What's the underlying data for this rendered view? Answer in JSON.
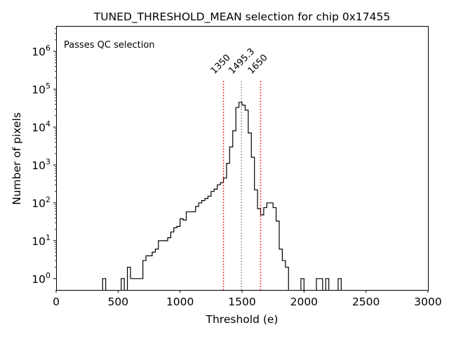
{
  "chart_data": {
    "type": "histogram",
    "title": "TUNED_THRESHOLD_MEAN selection for chip 0x17455",
    "xlabel": "Threshold (e)",
    "ylabel": "Number of pixels",
    "xlim": [
      0,
      3000
    ],
    "ylog_range": [
      -0.3,
      6.67
    ],
    "yscale": "log",
    "bin_width": 25,
    "x_ticks": [
      {
        "value": 0,
        "label": "0"
      },
      {
        "value": 500,
        "label": "500"
      },
      {
        "value": 1000,
        "label": "1000"
      },
      {
        "value": 1500,
        "label": "1500"
      },
      {
        "value": 2000,
        "label": "2000"
      },
      {
        "value": 2500,
        "label": "2500"
      },
      {
        "value": 3000,
        "label": "3000"
      }
    ],
    "y_ticks": [
      {
        "exp": 0,
        "base": "10",
        "sup": "0"
      },
      {
        "exp": 1,
        "base": "10",
        "sup": "1"
      },
      {
        "exp": 2,
        "base": "10",
        "sup": "2"
      },
      {
        "exp": 3,
        "base": "10",
        "sup": "3"
      },
      {
        "exp": 4,
        "base": "10",
        "sup": "4"
      },
      {
        "exp": 5,
        "base": "10",
        "sup": "5"
      },
      {
        "exp": 6,
        "base": "10",
        "sup": "6"
      }
    ],
    "bins": [
      [
        375,
        1
      ],
      [
        525,
        1
      ],
      [
        575,
        2
      ],
      [
        600,
        1
      ],
      [
        625,
        1
      ],
      [
        650,
        1
      ],
      [
        675,
        1
      ],
      [
        700,
        3
      ],
      [
        725,
        4
      ],
      [
        750,
        4
      ],
      [
        775,
        5
      ],
      [
        800,
        6
      ],
      [
        825,
        10
      ],
      [
        850,
        10
      ],
      [
        875,
        10
      ],
      [
        900,
        12
      ],
      [
        925,
        17
      ],
      [
        950,
        22
      ],
      [
        975,
        24
      ],
      [
        1000,
        38
      ],
      [
        1025,
        35
      ],
      [
        1050,
        58
      ],
      [
        1075,
        58
      ],
      [
        1100,
        58
      ],
      [
        1125,
        80
      ],
      [
        1150,
        100
      ],
      [
        1175,
        115
      ],
      [
        1200,
        130
      ],
      [
        1225,
        150
      ],
      [
        1250,
        200
      ],
      [
        1275,
        230
      ],
      [
        1300,
        300
      ],
      [
        1325,
        340
      ],
      [
        1350,
        450
      ],
      [
        1375,
        1100
      ],
      [
        1400,
        3000
      ],
      [
        1425,
        8000
      ],
      [
        1450,
        33000
      ],
      [
        1475,
        45000
      ],
      [
        1500,
        38000
      ],
      [
        1525,
        28000
      ],
      [
        1550,
        7000
      ],
      [
        1575,
        1600
      ],
      [
        1600,
        220
      ],
      [
        1625,
        70
      ],
      [
        1650,
        48
      ],
      [
        1675,
        75
      ],
      [
        1700,
        100
      ],
      [
        1725,
        100
      ],
      [
        1750,
        75
      ],
      [
        1775,
        33
      ],
      [
        1800,
        6
      ],
      [
        1825,
        3
      ],
      [
        1850,
        2
      ],
      [
        1975,
        1
      ],
      [
        2100,
        1
      ],
      [
        2125,
        1
      ],
      [
        2175,
        1
      ],
      [
        2275,
        1
      ]
    ],
    "lines": [
      {
        "x": 1350,
        "label": "1350",
        "color": "#ff0000",
        "style": "dotted"
      },
      {
        "x": 1495.3,
        "label": "1495.3",
        "color": "#808080",
        "style": "dotted"
      },
      {
        "x": 1650,
        "label": "1650",
        "color": "#ff0000",
        "style": "dotted"
      }
    ],
    "annotation": {
      "text": "Passes QC selection",
      "color": "#008000"
    }
  }
}
